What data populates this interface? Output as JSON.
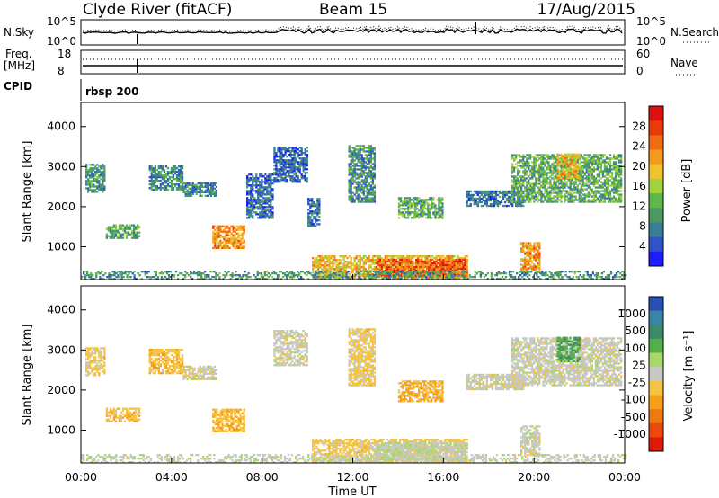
{
  "header": {
    "station": "Clyde River (fitACF)",
    "beam": "Beam 15",
    "date": "17/Aug/2015"
  },
  "strips": {
    "nsky_label": "N.Sky",
    "nsky_top": "10^5",
    "nsky_bottom": "10^0",
    "nsearch_label": "N.Search",
    "nsearch_top": "10^5",
    "nsearch_bottom": "10^0",
    "freq_label_1": "Freq.",
    "freq_label_2": "[MHz]",
    "freq_top": "18",
    "freq_bottom": "8",
    "nave_label": "Nave",
    "nave_top": "60",
    "nave_bottom": "0",
    "cpid_label": "CPID",
    "cpid_value": "rbsp 200"
  },
  "axes": {
    "ylabel": "Slant Range [km]",
    "xlabel": "Time UT",
    "y_ticks": [
      "1000",
      "2000",
      "3000",
      "4000"
    ],
    "x_ticks": [
      "00:00",
      "04:00",
      "08:00",
      "12:00",
      "16:00",
      "20:00",
      "00:00"
    ]
  },
  "colorbars": {
    "power": {
      "title": "Power [dB]",
      "labels": [
        "4",
        "8",
        "12",
        "16",
        "20",
        "24",
        "28"
      ],
      "colors": [
        "#1c1cff",
        "#2f53c8",
        "#3a7f9a",
        "#4c9a62",
        "#5eb84a",
        "#9fd23c",
        "#f2c12e",
        "#f59a1d",
        "#f26d12",
        "#e83b0c",
        "#df1010"
      ]
    },
    "velocity": {
      "title": "Velocity [m s⁻¹]",
      "labels": [
        "1000",
        "500",
        "100",
        "25",
        "-25",
        "-100",
        "-500",
        "-1000"
      ],
      "colors": [
        "#2a4fb6",
        "#3a86a8",
        "#3f8a6a",
        "#55b04a",
        "#a6d96a",
        "#c8c8c4",
        "#f5c442",
        "#f5a018",
        "#f07a10",
        "#ea4b0c",
        "#e01a08"
      ]
    }
  },
  "chart_data": [
    {
      "type": "heatmap",
      "title": "Power",
      "ylabel": "Slant Range [km]",
      "xlabel": "Time UT",
      "xlim": [
        0,
        24
      ],
      "ylim": [
        180,
        4600
      ],
      "x_unit": "hours UT",
      "y_unit": "km",
      "colorbar_label": "Power [dB]",
      "colorbar_range": [
        0,
        32
      ],
      "patches": [
        {
          "t": [
            0.2,
            1.0
          ],
          "r": [
            2350,
            3050
          ],
          "value": 10
        },
        {
          "t": [
            1.1,
            2.6
          ],
          "r": [
            1200,
            1550
          ],
          "value": 12
        },
        {
          "t": [
            3.0,
            4.5
          ],
          "r": [
            2400,
            3000
          ],
          "value": 9
        },
        {
          "t": [
            4.5,
            6.0
          ],
          "r": [
            2250,
            2600
          ],
          "value": 8
        },
        {
          "t": [
            5.8,
            7.2
          ],
          "r": [
            950,
            1500
          ],
          "value": 22
        },
        {
          "t": [
            7.3,
            8.5
          ],
          "r": [
            1700,
            2800
          ],
          "value": 6
        },
        {
          "t": [
            8.5,
            10.0
          ],
          "r": [
            2600,
            3500
          ],
          "value": 6
        },
        {
          "t": [
            10.0,
            10.5
          ],
          "r": [
            1500,
            2200
          ],
          "value": 7
        },
        {
          "t": [
            11.8,
            13.0
          ],
          "r": [
            2100,
            3500
          ],
          "value": 9
        },
        {
          "t": [
            10.2,
            17.0
          ],
          "r": [
            200,
            750
          ],
          "value": 20
        },
        {
          "t": [
            13.0,
            17.0
          ],
          "r": [
            250,
            700
          ],
          "value": 26
        },
        {
          "t": [
            14.0,
            16.0
          ],
          "r": [
            1700,
            2200
          ],
          "value": 12
        },
        {
          "t": [
            17.0,
            19.5
          ],
          "r": [
            2000,
            2400
          ],
          "value": 7
        },
        {
          "t": [
            19.4,
            20.2
          ],
          "r": [
            350,
            1100
          ],
          "value": 22
        },
        {
          "t": [
            19.0,
            23.8
          ],
          "r": [
            2100,
            3300
          ],
          "value": 12
        },
        {
          "t": [
            21.0,
            22.0
          ],
          "r": [
            2700,
            3300
          ],
          "value": 20
        },
        {
          "t": [
            0.0,
            24.0
          ],
          "r": [
            180,
            400
          ],
          "value": 10
        }
      ]
    },
    {
      "type": "heatmap",
      "title": "Velocity",
      "ylabel": "Slant Range [km]",
      "xlabel": "Time UT",
      "xlim": [
        0,
        24
      ],
      "ylim": [
        180,
        4600
      ],
      "x_unit": "hours UT",
      "y_unit": "km",
      "colorbar_label": "Velocity [m s⁻¹]",
      "colorbar_range": [
        -1000,
        1000
      ],
      "patches": [
        {
          "t": [
            0.2,
            1.0
          ],
          "r": [
            2350,
            3050
          ],
          "value": -150
        },
        {
          "t": [
            1.1,
            2.6
          ],
          "r": [
            1200,
            1550
          ],
          "value": -200
        },
        {
          "t": [
            3.0,
            4.5
          ],
          "r": [
            2400,
            3000
          ],
          "value": -200
        },
        {
          "t": [
            4.5,
            6.0
          ],
          "r": [
            2250,
            2600
          ],
          "value": 0
        },
        {
          "t": [
            5.8,
            7.2
          ],
          "r": [
            950,
            1500
          ],
          "value": -250
        },
        {
          "t": [
            8.5,
            10.0
          ],
          "r": [
            2600,
            3500
          ],
          "value": 0
        },
        {
          "t": [
            11.8,
            13.0
          ],
          "r": [
            2100,
            3500
          ],
          "value": -150
        },
        {
          "t": [
            10.2,
            17.0
          ],
          "r": [
            200,
            750
          ],
          "value": -150
        },
        {
          "t": [
            13.0,
            17.0
          ],
          "r": [
            250,
            700
          ],
          "value": 60
        },
        {
          "t": [
            14.0,
            16.0
          ],
          "r": [
            1700,
            2200
          ],
          "value": -300
        },
        {
          "t": [
            17.0,
            19.5
          ],
          "r": [
            2000,
            2400
          ],
          "value": 0
        },
        {
          "t": [
            19.4,
            20.2
          ],
          "r": [
            350,
            1100
          ],
          "value": 0
        },
        {
          "t": [
            19.0,
            23.8
          ],
          "r": [
            2100,
            3300
          ],
          "value": 0
        },
        {
          "t": [
            21.0,
            22.0
          ],
          "r": [
            2700,
            3300
          ],
          "value": 400
        },
        {
          "t": [
            0.0,
            24.0
          ],
          "r": [
            180,
            400
          ],
          "value": 30
        }
      ]
    }
  ]
}
